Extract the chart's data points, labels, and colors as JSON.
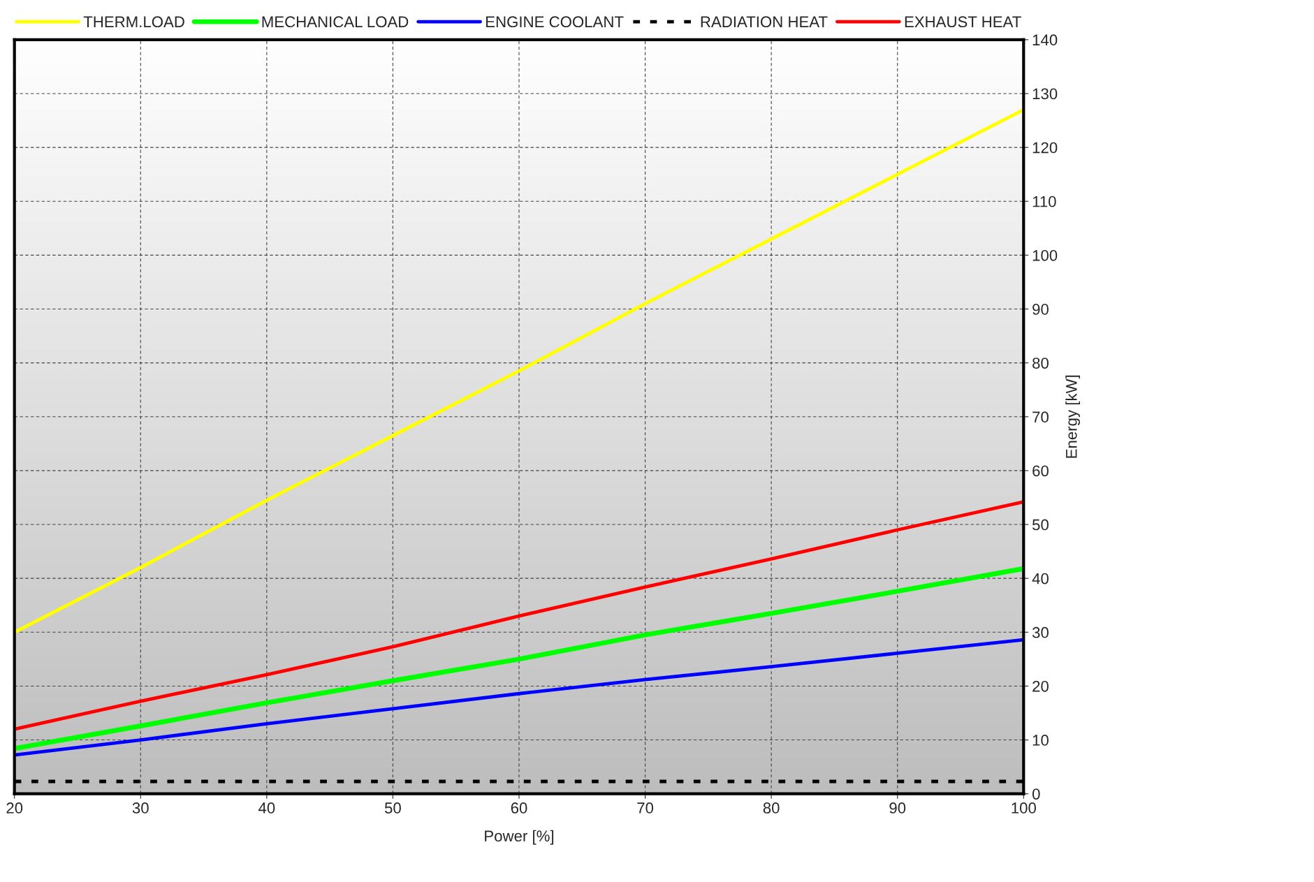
{
  "chart_data": {
    "type": "line",
    "xlabel": "Power [%]",
    "ylabel": "Energy [kW]",
    "x": [
      20,
      30,
      40,
      50,
      60,
      70,
      80,
      90,
      100
    ],
    "series": [
      {
        "name": "THERM.LOAD",
        "color": "#ffff00",
        "values": [
          30,
          42,
          54.5,
          66.5,
          78.5,
          91,
          103,
          115,
          127
        ]
      },
      {
        "name": "MECHANICAL LOAD",
        "color": "#00ff00",
        "values": [
          8.4,
          12.6,
          16.9,
          21,
          25,
          29.5,
          33.5,
          37.6,
          41.8
        ]
      },
      {
        "name": "ENGINE COOLANT",
        "color": "#0000ff",
        "values": [
          7.2,
          10,
          13,
          15.8,
          18.6,
          21.2,
          23.6,
          26.1,
          28.6
        ]
      },
      {
        "name": "RADIATION HEAT",
        "color": "#000000",
        "line_style": "dotted",
        "values": [
          2.3,
          2.3,
          2.3,
          2.3,
          2.3,
          2.3,
          2.3,
          2.3,
          2.3
        ]
      },
      {
        "name": "EXHAUST HEAT",
        "color": "#ff0000",
        "values": [
          12,
          17.2,
          22.1,
          27.3,
          33,
          38.4,
          43.6,
          49,
          54.2
        ]
      }
    ],
    "xlim": [
      20,
      100
    ],
    "xticks": [
      20,
      30,
      40,
      50,
      60,
      70,
      80,
      90,
      100
    ],
    "ylim": [
      0,
      140
    ],
    "yticks": [
      0,
      10,
      20,
      30,
      40,
      50,
      60,
      70,
      80,
      90,
      100,
      110,
      120,
      130,
      140
    ],
    "grid": true,
    "legend": "top",
    "line_style": "solid",
    "marker": "none"
  }
}
